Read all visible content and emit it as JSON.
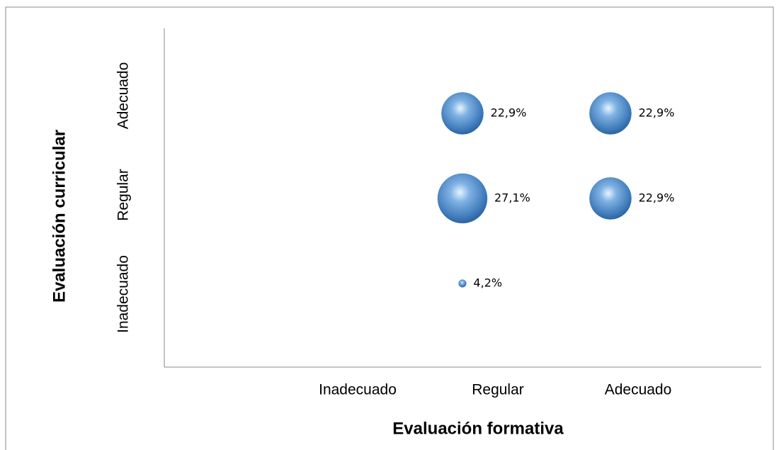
{
  "chart_data": {
    "type": "bubble",
    "xlabel": "Evaluación formativa",
    "ylabel": "Evaluación curricular",
    "x_categories": [
      "Inadecuado",
      "Regular",
      "Adecuado"
    ],
    "y_categories": [
      "Inadecuado",
      "Regular",
      "Adecuado"
    ],
    "color": "#4a86c5",
    "x": [
      "Regular",
      "Adecuado",
      "Regular",
      "Adecuado",
      "Regular"
    ],
    "y": [
      "Adecuado",
      "Adecuado",
      "Regular",
      "Regular",
      "Inadecuado"
    ],
    "values": [
      22.9,
      22.9,
      27.1,
      22.9,
      4.2
    ],
    "value_labels": [
      "22,9%",
      "22,9%",
      "27,1%",
      "22,9%",
      "4,2%"
    ]
  }
}
